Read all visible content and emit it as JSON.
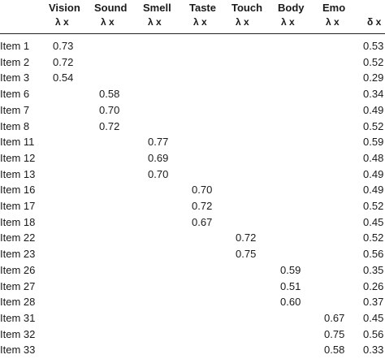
{
  "columns": [
    {
      "name": "Vision",
      "sub": "λ x"
    },
    {
      "name": "Sound",
      "sub": "λ x"
    },
    {
      "name": "Smell",
      "sub": "λ x"
    },
    {
      "name": "Taste",
      "sub": "λ x"
    },
    {
      "name": "Touch",
      "sub": "λ x"
    },
    {
      "name": "Body",
      "sub": "λ x"
    },
    {
      "name": "Emo",
      "sub": "λ x"
    }
  ],
  "last_column_sub": "δ x",
  "rows": [
    {
      "item": "Item 1",
      "col": 0,
      "lambda": "0.73",
      "delta": "0.53"
    },
    {
      "item": "Item 2",
      "col": 0,
      "lambda": "0.72",
      "delta": "0.52"
    },
    {
      "item": "Item 3",
      "col": 0,
      "lambda": "0.54",
      "delta": "0.29"
    },
    {
      "item": "Item 6",
      "col": 1,
      "lambda": "0.58",
      "delta": "0.34"
    },
    {
      "item": "Item 7",
      "col": 1,
      "lambda": "0.70",
      "delta": "0.49"
    },
    {
      "item": "Item 8",
      "col": 1,
      "lambda": "0.72",
      "delta": "0.52"
    },
    {
      "item": "Item 11",
      "col": 2,
      "lambda": "0.77",
      "delta": "0.59"
    },
    {
      "item": "Item 12",
      "col": 2,
      "lambda": "0.69",
      "delta": "0.48"
    },
    {
      "item": "Item 13",
      "col": 2,
      "lambda": "0.70",
      "delta": "0.49"
    },
    {
      "item": "Item 16",
      "col": 3,
      "lambda": "0.70",
      "delta": "0.49"
    },
    {
      "item": "Item 17",
      "col": 3,
      "lambda": "0.72",
      "delta": "0.52"
    },
    {
      "item": "Item 18",
      "col": 3,
      "lambda": "0.67",
      "delta": "0.45"
    },
    {
      "item": "Item 22",
      "col": 4,
      "lambda": "0.72",
      "delta": "0.52"
    },
    {
      "item": "Item 23",
      "col": 4,
      "lambda": "0.75",
      "delta": "0.56"
    },
    {
      "item": "Item 26",
      "col": 5,
      "lambda": "0.59",
      "delta": "0.35"
    },
    {
      "item": "Item 27",
      "col": 5,
      "lambda": "0.51",
      "delta": "0.26"
    },
    {
      "item": "Item 28",
      "col": 5,
      "lambda": "0.60",
      "delta": "0.37"
    },
    {
      "item": "Item 31",
      "col": 6,
      "lambda": "0.67",
      "delta": "0.45"
    },
    {
      "item": "Item 32",
      "col": 6,
      "lambda": "0.75",
      "delta": "0.56"
    },
    {
      "item": "Item 33",
      "col": 6,
      "lambda": "0.58",
      "delta": "0.33"
    }
  ]
}
